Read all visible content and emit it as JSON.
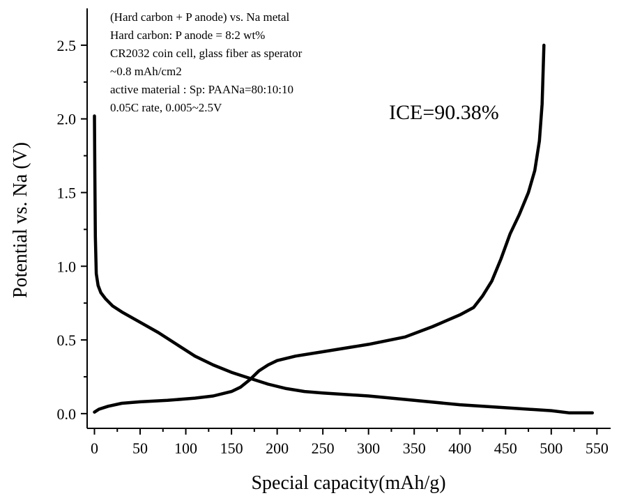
{
  "chart_data": {
    "type": "line",
    "xlabel": "Special capacity(mAh/g)",
    "ylabel": "Potential vs. Na (V)",
    "xlim": [
      -8,
      565
    ],
    "ylim": [
      -0.1,
      2.75
    ],
    "xticks": [
      0,
      50,
      100,
      150,
      200,
      250,
      300,
      350,
      400,
      450,
      500,
      550
    ],
    "yticks": [
      0.0,
      0.5,
      1.0,
      1.5,
      2.0,
      2.5
    ],
    "ytick_labels": [
      "0.0",
      "0.5",
      "1.0",
      "1.5",
      "2.0",
      "2.5"
    ],
    "grid": false,
    "annotations": [
      {
        "text": "(Hard carbon + P anode) vs. Na metal",
        "color": "#000000"
      },
      {
        "text": "Hard carbon: P anode = 8:2 wt%",
        "color": "#1a1aff"
      },
      {
        "text": "CR2032 coin cell, glass fiber as sperator",
        "color": "#000000"
      },
      {
        "text": "~0.8 mAh/cm2",
        "color": "#000000"
      },
      {
        "text": "active material : Sp: PAANa=80:10:10",
        "color": "#000000"
      },
      {
        "text": "0.05C rate, 0.005~2.5V",
        "color": "#000000"
      }
    ],
    "ice_label": "ICE=90.38%",
    "series": [
      {
        "color": "#000000",
        "points": [
          [
            0,
            2.02
          ],
          [
            0.5,
            1.6
          ],
          [
            1,
            1.2
          ],
          [
            2,
            0.95
          ],
          [
            4,
            0.87
          ],
          [
            7,
            0.82
          ],
          [
            12,
            0.78
          ],
          [
            20,
            0.73
          ],
          [
            30,
            0.69
          ],
          [
            50,
            0.62
          ],
          [
            70,
            0.55
          ],
          [
            90,
            0.47
          ],
          [
            110,
            0.39
          ],
          [
            130,
            0.33
          ],
          [
            150,
            0.28
          ],
          [
            170,
            0.24
          ],
          [
            190,
            0.2
          ],
          [
            210,
            0.17
          ],
          [
            230,
            0.15
          ],
          [
            250,
            0.14
          ],
          [
            300,
            0.12
          ],
          [
            350,
            0.09
          ],
          [
            400,
            0.06
          ],
          [
            450,
            0.04
          ],
          [
            500,
            0.02
          ],
          [
            520,
            0.005
          ],
          [
            545,
            0.005
          ]
        ]
      },
      {
        "color": "#000000",
        "points": [
          [
            0,
            0.01
          ],
          [
            5,
            0.03
          ],
          [
            15,
            0.05
          ],
          [
            30,
            0.07
          ],
          [
            50,
            0.08
          ],
          [
            80,
            0.09
          ],
          [
            110,
            0.105
          ],
          [
            130,
            0.12
          ],
          [
            150,
            0.15
          ],
          [
            160,
            0.18
          ],
          [
            170,
            0.23
          ],
          [
            180,
            0.29
          ],
          [
            190,
            0.33
          ],
          [
            200,
            0.36
          ],
          [
            220,
            0.39
          ],
          [
            250,
            0.42
          ],
          [
            300,
            0.47
          ],
          [
            340,
            0.52
          ],
          [
            370,
            0.59
          ],
          [
            400,
            0.67
          ],
          [
            415,
            0.72
          ],
          [
            425,
            0.8
          ],
          [
            435,
            0.9
          ],
          [
            445,
            1.05
          ],
          [
            455,
            1.22
          ],
          [
            465,
            1.35
          ],
          [
            475,
            1.5
          ],
          [
            482,
            1.65
          ],
          [
            487,
            1.85
          ],
          [
            490,
            2.1
          ],
          [
            492,
            2.5
          ]
        ]
      }
    ]
  }
}
